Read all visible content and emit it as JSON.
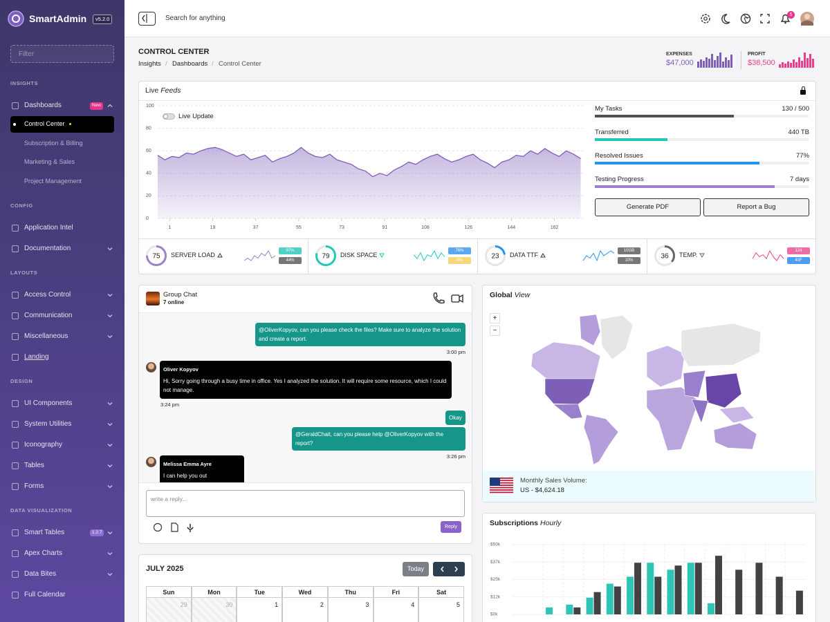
{
  "sidebar": {
    "brand": "SmartAdmin",
    "version": "v5.2.0",
    "filter": "Filter",
    "active_child": 0,
    "sections": [
      {
        "title": "INSIGHTS",
        "items": [
          {
            "label": "Dashboards",
            "badge": "New",
            "expandable": true,
            "children": [
              "Control Center",
              "Subscription & Billing",
              "Marketing & Sales",
              "Project Management"
            ]
          }
        ]
      },
      {
        "title": "CONFIG",
        "items": [
          {
            "label": "Application Intel",
            "expandable": false
          },
          {
            "label": "Documentation",
            "expandable": true
          }
        ]
      },
      {
        "title": "LAYOUTS",
        "items": [
          {
            "label": "Access Control",
            "expandable": true
          },
          {
            "label": "Communication",
            "expandable": true
          },
          {
            "label": "Miscellaneous",
            "expandable": true
          },
          {
            "label": "Landing",
            "expandable": false,
            "link": true
          }
        ]
      },
      {
        "title": "DESIGN",
        "items": [
          {
            "label": "UI Components",
            "expandable": true
          },
          {
            "label": "System Utilities",
            "expandable": true
          },
          {
            "label": "Iconography",
            "expandable": true
          },
          {
            "label": "Tables",
            "expandable": true
          },
          {
            "label": "Forms",
            "expandable": true
          }
        ]
      },
      {
        "title": "DATA VISUALIZATION",
        "items": [
          {
            "label": "Smart Tables",
            "badge": "1.2.7",
            "expandable": true
          },
          {
            "label": "Apex Charts",
            "expandable": true
          },
          {
            "label": "Data Bites",
            "expandable": true
          },
          {
            "label": "Full Calendar",
            "expandable": false
          }
        ]
      }
    ]
  },
  "header": {
    "search": "Search for anything",
    "notifications": "5"
  },
  "page": {
    "title": "CONTROL CENTER",
    "breadcrumb": [
      "Insights",
      "Dashboards",
      "Control Center"
    ],
    "stats": [
      {
        "label": "EXPENSES",
        "value": "$47,000",
        "color": "#7e5fb8",
        "bars": [
          9,
          12,
          10,
          15,
          13,
          20,
          11,
          17,
          22,
          9,
          15,
          11,
          19
        ]
      },
      {
        "label": "PROFIT",
        "value": "$38,500",
        "color": "#e83e8c",
        "bars": [
          5,
          8,
          6,
          9,
          7,
          12,
          8,
          15,
          10,
          22,
          14,
          20,
          13
        ]
      }
    ]
  },
  "live_feed": {
    "title": "Live",
    "title_em": "Feeds",
    "toggle": "Live Update",
    "progress": [
      {
        "label": "My Tasks",
        "text": "130 / 500",
        "progress": 65,
        "color": "#505050"
      },
      {
        "label": "Transferred",
        "text": "440 TB",
        "progress": 34,
        "color": "#1dc9b7"
      },
      {
        "label": "Resolved Issues",
        "text": "77%",
        "progress": 77,
        "color": "#2196f3"
      },
      {
        "label": "Testing Progress",
        "text": "7 days",
        "progress": 84,
        "color": "#9e7fcc"
      }
    ],
    "buttons": [
      "Generate PDF",
      "Report a Bug"
    ],
    "gauges": [
      {
        "value": 75,
        "label": "SERVER LOAD",
        "trend": "up",
        "color": "#9b82c9",
        "badges": [
          {
            "text": "97%",
            "color": "#4fd1c5"
          },
          {
            "text": "44%",
            "color": "#777"
          }
        ],
        "spark": [
          4,
          5,
          4,
          6,
          5,
          7,
          6,
          8,
          5,
          6
        ]
      },
      {
        "value": 79,
        "label": "DISK SPACE",
        "trend": "down",
        "color": "#1dc9b7",
        "badges": [
          {
            "text": "76%",
            "color": "#5aa9f0"
          },
          {
            "text": "3%",
            "color": "#f6d87a"
          }
        ],
        "spark": [
          6,
          4,
          7,
          3,
          6,
          5,
          8,
          4,
          7,
          5
        ]
      },
      {
        "value": 23,
        "label": "DATA TTF",
        "trend": "up",
        "color": "#2196f3",
        "badges": [
          {
            "text": "10GB",
            "color": "#777"
          },
          {
            "text": "10%",
            "color": "#777"
          }
        ],
        "spark": [
          3,
          5,
          4,
          6,
          3,
          7,
          5,
          6,
          7,
          6
        ]
      },
      {
        "value": 36,
        "label": "TEMP.",
        "trend": "down",
        "color": "#666",
        "badges": [
          {
            "text": "124",
            "color": "#f06aa8"
          },
          {
            "text": "40F",
            "color": "#4d9cf0"
          }
        ],
        "spark": [
          4,
          7,
          5,
          6,
          4,
          8,
          5,
          3,
          6,
          4
        ]
      }
    ]
  },
  "chart_data": [
    {
      "type": "area",
      "color": "#7e5fb8",
      "x": [
        -4,
        -1,
        2,
        5,
        8,
        11,
        14,
        17,
        20,
        23,
        26,
        29,
        32,
        35,
        38,
        41,
        44,
        47,
        50,
        53,
        56,
        59,
        62,
        65,
        68,
        71,
        74,
        77,
        80,
        83,
        86,
        89,
        92,
        95,
        98,
        101,
        104,
        107,
        110,
        113,
        116,
        119,
        122,
        125,
        128,
        131,
        134,
        137,
        140,
        143,
        146,
        149,
        152,
        155,
        158,
        161,
        164,
        167,
        170,
        173
      ],
      "values": [
        56,
        52,
        55,
        54,
        58,
        57,
        60,
        62,
        63,
        61,
        58,
        55,
        57,
        52,
        54,
        56,
        50,
        53,
        55,
        58,
        63,
        58,
        55,
        54,
        57,
        52,
        50,
        48,
        44,
        42,
        37,
        40,
        38,
        43,
        46,
        50,
        48,
        52,
        55,
        57,
        53,
        50,
        52,
        55,
        57,
        52,
        49,
        45,
        50,
        52,
        56,
        55,
        60,
        57,
        62,
        58,
        55,
        60,
        57,
        53
      ],
      "xlim": [
        -4,
        174
      ],
      "ylim": [
        0,
        100
      ],
      "xticks": [
        1,
        19,
        37,
        55,
        73,
        91,
        108,
        126,
        144,
        162
      ],
      "yticks": [
        0,
        20,
        40,
        60,
        80,
        100
      ],
      "grid": true
    },
    {
      "type": "bar",
      "title": "Subscriptions",
      "title_em": "Hourly",
      "categories": [
        null,
        null,
        null,
        null,
        null,
        null,
        null,
        null,
        null,
        null,
        null,
        null,
        null
      ],
      "series": [
        {
          "color": "#2ec4b6",
          "values": [
            5,
            7,
            12,
            22,
            27,
            37,
            32,
            37,
            8,
            0,
            0,
            0,
            0
          ]
        },
        {
          "color": "#424242",
          "values": [
            0,
            5,
            16,
            20,
            37,
            27,
            35,
            37,
            42,
            32,
            37,
            27,
            17
          ]
        }
      ],
      "ylim": [
        0,
        50
      ],
      "yticks": [
        {
          "value": 0,
          "label": "$0k"
        },
        {
          "value": 12.5,
          "label": "$12k"
        },
        {
          "value": 25,
          "label": "$25k"
        },
        {
          "value": 37.5,
          "label": "$37k"
        },
        {
          "value": 50,
          "label": "$50k"
        }
      ],
      "grid": true
    }
  ],
  "chat": {
    "title": "Group Chat",
    "status": "7 online",
    "placeholder": "write a reply...",
    "reply": "Reply",
    "messages": [
      {
        "own": true,
        "text": "@OliverKopyov, can you please check the files? Make sure to analyze the solution and create a report.",
        "time": "3:00 pm"
      },
      {
        "own": false,
        "author": "Oliver Kopyov",
        "text": "Hi, Sorry going through a busy time in office. Yes I analyzed the solution. It will require some resource, which I could not manage.",
        "time": "3:24 pm"
      },
      {
        "own": true,
        "text": "Okay"
      },
      {
        "own": true,
        "text": "@GeraldChait, can you please help @OliverKopyov with the report?",
        "time": "3:26 pm"
      },
      {
        "own": false,
        "author": "Melissa Emma Ayre",
        "text": "I can help you out\nCan you send the related files?"
      }
    ]
  },
  "map": {
    "title": "Global",
    "title_em": "View",
    "zoom": [
      "+",
      "−"
    ],
    "caption": "Monthly Sales Volume:",
    "amount": "US - $4,624.18"
  },
  "calendar": {
    "title": "JULY 2025",
    "today": "Today",
    "weekdays": [
      "Sun",
      "Mon",
      "Tue",
      "Wed",
      "Thu",
      "Fri",
      "Sat"
    ],
    "days": [
      {
        "day": "29",
        "other": true
      },
      {
        "day": "30",
        "other": true
      },
      {
        "day": "1"
      },
      {
        "day": "2"
      },
      {
        "day": "3"
      },
      {
        "day": "4"
      },
      {
        "day": "5"
      }
    ]
  }
}
